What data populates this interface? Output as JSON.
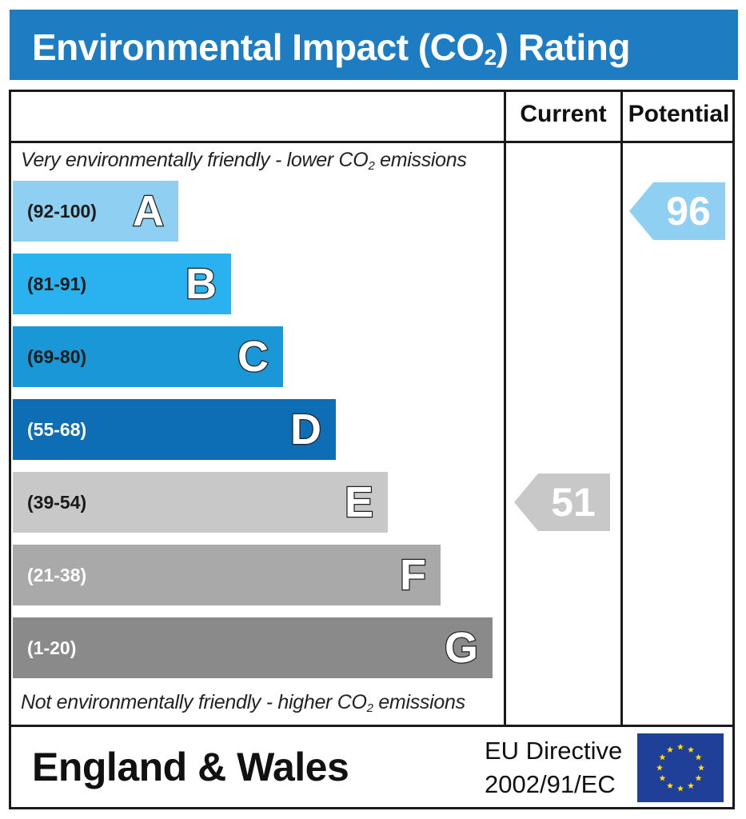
{
  "header": {
    "title_prefix": "Environmental Impact (CO",
    "title_sub": "2",
    "title_suffix": ") Rating"
  },
  "columns": {
    "current": "Current",
    "potential": "Potential"
  },
  "notes": {
    "top_prefix": "Very environmentally friendly - lower CO",
    "top_sub": "2",
    "top_suffix": " emissions",
    "bottom_prefix": "Not environmentally friendly - higher CO",
    "bottom_sub": "2",
    "bottom_suffix": " emissions"
  },
  "chart_data": {
    "type": "bar",
    "categories": [
      "A",
      "B",
      "C",
      "D",
      "E",
      "F",
      "G"
    ],
    "ranges": [
      "(92-100)",
      "(81-91)",
      "(69-80)",
      "(55-68)",
      "(39-54)",
      "(21-38)",
      "(1-20)"
    ],
    "band_colors": [
      "#8fd0f2",
      "#29b2ef",
      "#1997d6",
      "#0d6eb5",
      "#c8c8c8",
      "#a9a9a9",
      "#8a8a8a"
    ],
    "range_colors": [
      "#1a1a1a",
      "#1a1a1a",
      "#1a1a1a",
      "#ffffff",
      "#1a1a1a",
      "#ffffff",
      "#ffffff"
    ],
    "current": {
      "value": 51,
      "band": "E",
      "color": "#c8c8c8"
    },
    "potential": {
      "value": 96,
      "band": "A",
      "color": "#8fd0f2"
    }
  },
  "footer": {
    "region": "England & Wales",
    "directive_line1": "EU Directive",
    "directive_line2": "2002/91/EC",
    "flag_icon": "eu-flag-icon",
    "flag_color": "#1f3f99",
    "star_color": "#ffdd00"
  }
}
